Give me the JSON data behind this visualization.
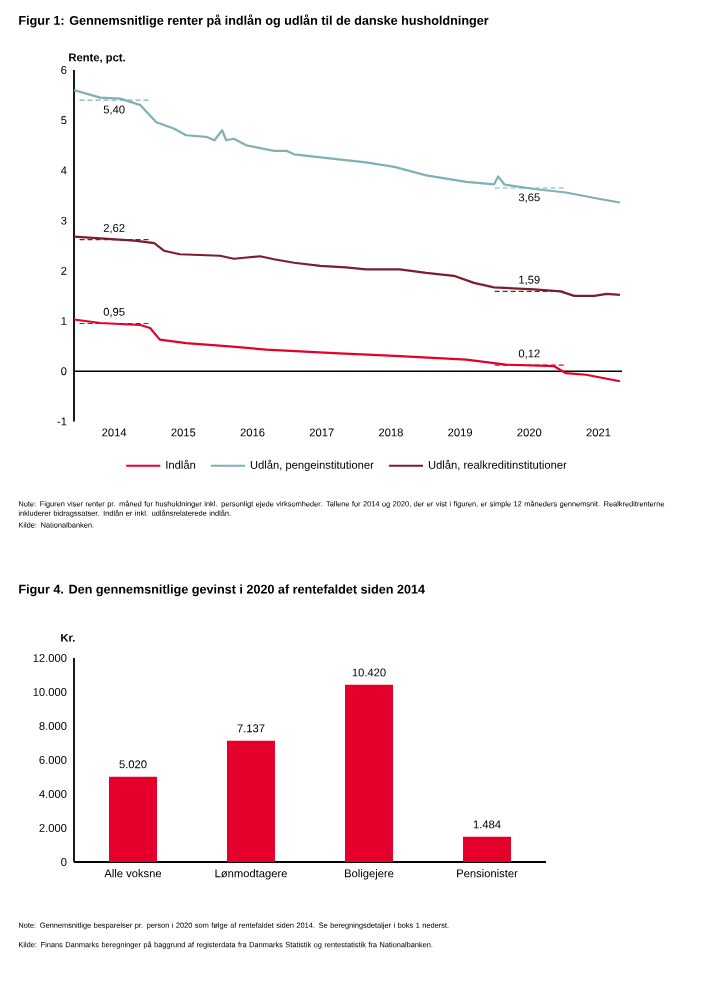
{
  "chart_data": [
    {
      "type": "line",
      "title": "Figur 1: Gennemsnitlige renter på indlån og udlån til de danske husholdninger",
      "ylabel": "Rente, pct.",
      "xlim": [
        2013.92,
        2021.84
      ],
      "ylim": [
        -1,
        6
      ],
      "yticks": [
        -1,
        0,
        1,
        2,
        3,
        4,
        5,
        6
      ],
      "xticks": [
        {
          "value": 2014.5,
          "label": "2014"
        },
        {
          "value": 2015.5,
          "label": "2015"
        },
        {
          "value": 2016.5,
          "label": "2016"
        },
        {
          "value": 2017.5,
          "label": "2017"
        },
        {
          "value": 2018.5,
          "label": "2018"
        },
        {
          "value": 2019.5,
          "label": "2019"
        },
        {
          "value": 2020.5,
          "label": "2020"
        },
        {
          "value": 2021.5,
          "label": "2021"
        }
      ],
      "legend": "bottom",
      "series": [
        {
          "name": "Indlån",
          "color": "#e4002b",
          "x": [
            2013.92,
            2014.3,
            2014.88,
            2015.02,
            2015.16,
            2015.54,
            2016.12,
            2016.7,
            2017.68,
            2018.63,
            2019.59,
            2020.16,
            2020.86,
            2021.03,
            2021.32,
            2021.81
          ],
          "values": [
            1.03,
            0.96,
            0.92,
            0.86,
            0.63,
            0.56,
            0.5,
            0.43,
            0.36,
            0.3,
            0.23,
            0.13,
            0.1,
            -0.04,
            -0.07,
            -0.2
          ]
        },
        {
          "name": "Udlån, pengeinstitutioner",
          "color": "#7fb1b3",
          "x": [
            2013.92,
            2014.3,
            2014.59,
            2014.88,
            2015.11,
            2015.37,
            2015.54,
            2015.83,
            2015.95,
            2016.06,
            2016.12,
            2016.23,
            2016.41,
            2016.81,
            2016.99,
            2017.1,
            2017.68,
            2018.14,
            2018.55,
            2019.01,
            2019.59,
            2019.99,
            2020.05,
            2020.14,
            2020.57,
            2021.03,
            2021.52,
            2021.81
          ],
          "values": [
            5.6,
            5.45,
            5.43,
            5.3,
            4.96,
            4.83,
            4.7,
            4.67,
            4.6,
            4.8,
            4.6,
            4.63,
            4.5,
            4.39,
            4.39,
            4.32,
            4.23,
            4.16,
            4.07,
            3.9,
            3.77,
            3.72,
            3.88,
            3.72,
            3.63,
            3.56,
            3.43,
            3.36
          ]
        },
        {
          "name": "Udlån, realkreditinstitutioner",
          "color": "#7a1f2e",
          "x": [
            2013.92,
            2014.79,
            2015.08,
            2015.22,
            2015.45,
            2016.03,
            2016.23,
            2016.38,
            2016.61,
            2016.81,
            2017.1,
            2017.48,
            2017.85,
            2018.14,
            2018.63,
            2019.01,
            2019.41,
            2019.7,
            2019.99,
            2020.57,
            2020.95,
            2021.15,
            2021.44,
            2021.62,
            2021.81
          ],
          "values": [
            2.68,
            2.6,
            2.55,
            2.4,
            2.33,
            2.3,
            2.24,
            2.26,
            2.29,
            2.23,
            2.16,
            2.1,
            2.07,
            2.03,
            2.03,
            1.96,
            1.9,
            1.76,
            1.67,
            1.63,
            1.59,
            1.5,
            1.5,
            1.54,
            1.52
          ]
        },
        {
          "type": "line",
          "line_style": "dashed",
          "color": "#7fb1b3",
          "x": [
            2014,
            2014.5,
            2015
          ],
          "values": [
            5.4,
            5.4,
            5.4
          ],
          "value_labels": [
            null,
            "5,40",
            null
          ]
        },
        {
          "type": "line",
          "line_style": "dashed",
          "color": "#7a1f2e",
          "x": [
            2014,
            2014.5,
            2015
          ],
          "values": [
            2.62,
            2.62,
            2.62
          ],
          "value_labels": [
            null,
            "2,62",
            null
          ]
        },
        {
          "type": "line",
          "line_style": "dashed",
          "color": "#e4002b",
          "x": [
            2014,
            2014.5,
            2015
          ],
          "values": [
            0.95,
            0.95,
            0.95
          ],
          "value_labels": [
            null,
            "0,95",
            null
          ]
        },
        {
          "type": "line",
          "line_style": "dashed",
          "color": "#7fb1b3",
          "x": [
            2020,
            2020.5,
            2021
          ],
          "values": [
            3.65,
            3.65,
            3.65
          ],
          "value_labels": [
            null,
            "3,65",
            null
          ]
        },
        {
          "type": "line",
          "line_style": "dashed",
          "color": "#7a1f2e",
          "x": [
            2020,
            2020.5,
            2021
          ],
          "values": [
            1.59,
            1.59,
            1.59
          ],
          "value_labels": [
            null,
            "1,59",
            null
          ]
        },
        {
          "type": "line",
          "line_style": "dashed",
          "color": "#e4002b",
          "x": [
            2020,
            2020.5,
            2021
          ],
          "values": [
            0.12,
            0.12,
            0.12
          ],
          "value_labels": [
            null,
            "0,12",
            null
          ]
        }
      ],
      "ref_lines": [
        {
          "axis": "y",
          "value": 0,
          "color": "#000000"
        }
      ],
      "annotations": [
        "Note: Figuren viser renter pr. måned for husholdninger inkl. personligt ejede virksomheder. Tallene for 2014 og 2020, der er vist i figuren, er simple 12 måneders gennemsnit. Realkreditrenterne inkluderer bidragssatser. Indlån er inkl. udlånsrelaterede indlån.",
        "Kilde: Nationalbanken."
      ]
    },
    {
      "type": "bar",
      "title": "Figur 4. Den gennemsnitlige gevinst i 2020 af rentefaldet siden 2014",
      "ylabel": "Kr.",
      "categories": [
        "Alle voksne",
        "Lønmodtagere",
        "Boligejere",
        "Pensionister"
      ],
      "values": [
        5020,
        7137,
        10420,
        1484
      ],
      "value_labels": [
        "5.020",
        "7.137",
        "10.420",
        "1.484"
      ],
      "color": "#e4002b",
      "ylim": [
        0,
        12000
      ],
      "yticks": [
        0,
        {
          "value": 2000,
          "label": "2.000"
        },
        {
          "value": 4000,
          "label": "4.000"
        },
        {
          "value": 6000,
          "label": "6.000"
        },
        {
          "value": 8000,
          "label": "8.000"
        },
        {
          "value": 10000,
          "label": "10.000"
        },
        {
          "value": 12000,
          "label": "12.000"
        }
      ],
      "annotations": [
        "Note: Gennemsnitlige besparelser pr. person i 2020 som følge af rentefaldet siden 2014. Se beregningsdetaljer i boks 1 nederst.",
        "Kilde: Finans Danmarks beregninger på baggrund af registerdata fra Danmarks Statistik og rentestatistik fra Nationalbanken."
      ]
    }
  ]
}
